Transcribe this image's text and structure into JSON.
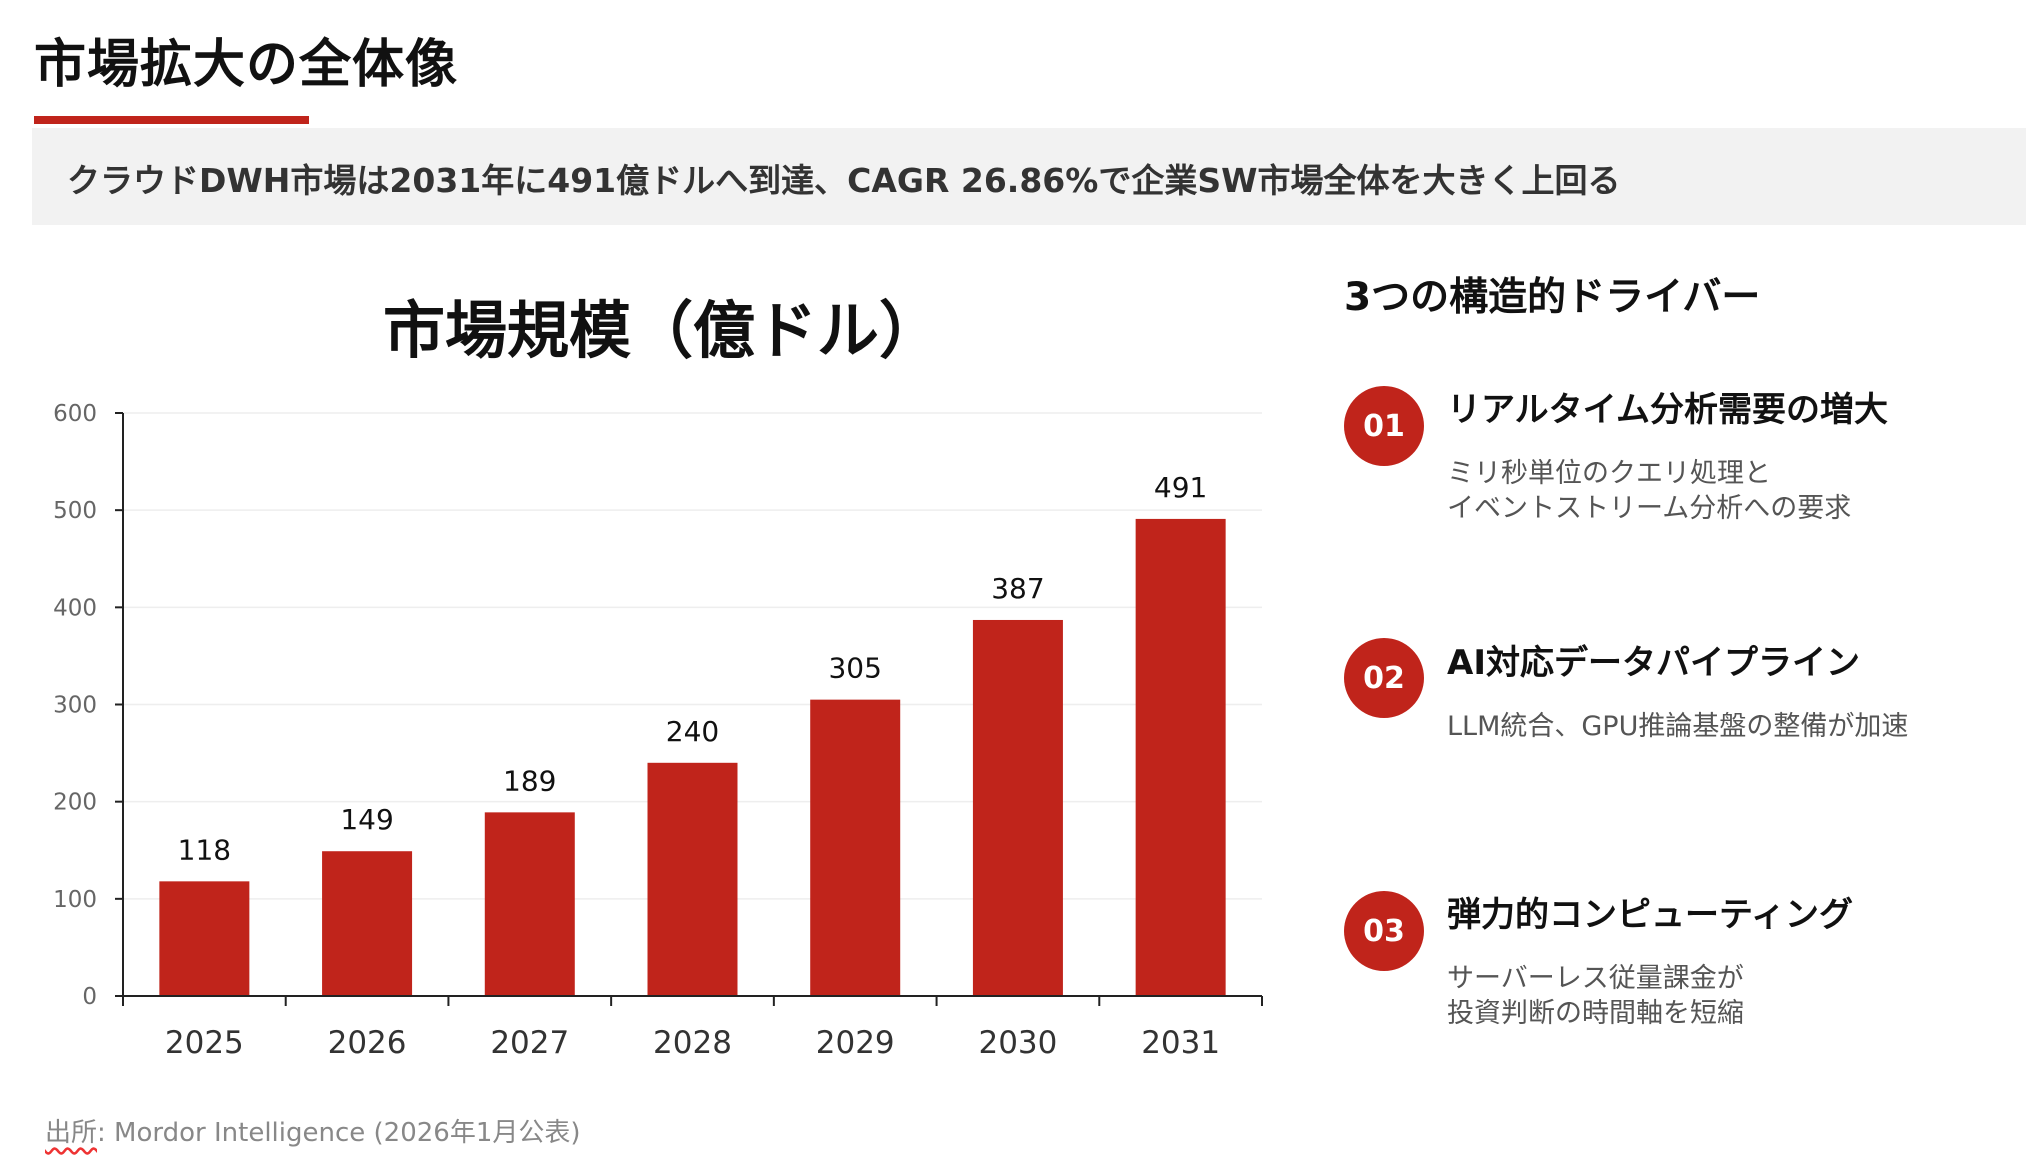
{
  "header": {
    "title": "市場拡大の全体像",
    "subtitle": "クラウドDWH市場は2031年に491億ドルへ到達、CAGR 26.86%で企業SW市場全体を大きく上回る"
  },
  "colors": {
    "accent": "#C0241B",
    "subtitle_bg": "#F2F2F2",
    "text": "#111111",
    "muted": "#888888"
  },
  "chart_data": {
    "type": "bar",
    "title": "市場規模（億ドル）",
    "categories": [
      "2025",
      "2026",
      "2027",
      "2028",
      "2029",
      "2030",
      "2031"
    ],
    "values": [
      118,
      149,
      189,
      240,
      305,
      387,
      491
    ],
    "data_labels": [
      "118",
      "149",
      "189",
      "240",
      "305",
      "387",
      "491"
    ],
    "ylim": [
      0,
      600
    ],
    "yticks": [
      "0",
      "100",
      "200",
      "300",
      "400",
      "500",
      "600"
    ],
    "grid": true,
    "xlabel": "",
    "ylabel": "",
    "bar_color": "#C0241B"
  },
  "drivers": {
    "heading": "3つの構造的ドライバー",
    "items": [
      {
        "number": "01",
        "title": "リアルタイム分析需要の増大",
        "desc": [
          "ミリ秒単位のクエリ処理と",
          "イベントストリーム分析への要求"
        ]
      },
      {
        "number": "02",
        "title": "AI対応データパイプライン",
        "desc": [
          "LLM統合、GPU推論基盤の整備が加速"
        ]
      },
      {
        "number": "03",
        "title": "弾力的コンピューティング",
        "desc": [
          "サーバーレス従量課金が",
          "投資判断の時間軸を短縮"
        ]
      }
    ]
  },
  "source": {
    "prefix": "出所",
    "text": ": Mordor Intelligence (2026年1月公表)"
  }
}
